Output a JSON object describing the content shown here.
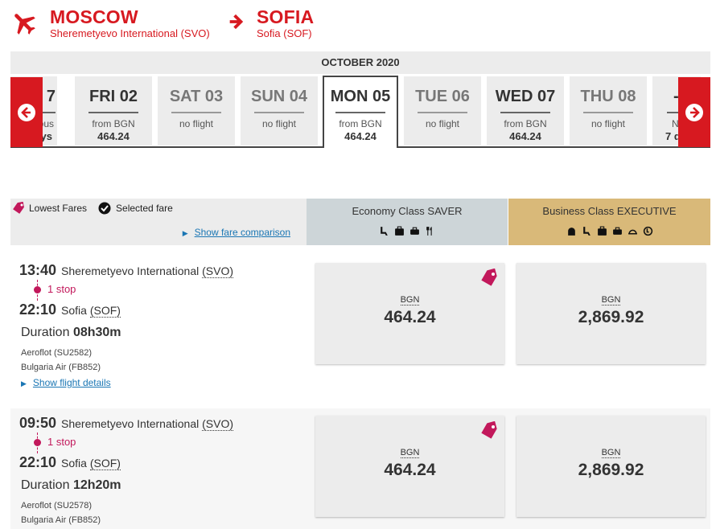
{
  "route": {
    "origin_city": "MOSCOW",
    "origin_airport": "Sheremetyevo International (SVO)",
    "dest_city": "SOFIA",
    "dest_airport": "Sofia (SOF)"
  },
  "calendar": {
    "month": "OCTOBER 2020",
    "partial_left": {
      "label": "7",
      "sub": "ous",
      "price": "ys"
    },
    "days": [
      {
        "label": "FRI 02",
        "sub": "from BGN",
        "price": "464.24"
      },
      {
        "label": "SAT 03",
        "sub": "no flight",
        "price": ""
      },
      {
        "label": "SUN 04",
        "sub": "no flight",
        "price": ""
      },
      {
        "label": "MON 05",
        "sub": "from BGN",
        "price": "464.24"
      },
      {
        "label": "TUE 06",
        "sub": "no flight",
        "price": ""
      },
      {
        "label": "WED 07",
        "sub": "from BGN",
        "price": "464.24"
      },
      {
        "label": "THU 08",
        "sub": "no flight",
        "price": ""
      }
    ],
    "partial_right": {
      "label": "-",
      "sub": "N",
      "price": "7 d"
    },
    "selected_index": 3
  },
  "legend": {
    "lowest": "Lowest Fares",
    "selected": "Selected fare",
    "compare": "Show fare comparison"
  },
  "classes": {
    "economy": "Economy Class SAVER",
    "business": "Business Class EXECUTIVE"
  },
  "flights": [
    {
      "dep_time": "13:40",
      "dep_station": "Sheremetyevo International",
      "dep_code": "(SVO)",
      "stops": "1 stop",
      "arr_time": "22:10",
      "arr_station": "Sofia",
      "arr_code": "(SOF)",
      "duration_label": "Duration",
      "duration": "08h30m",
      "carrier1": "Aeroflot (SU2582)",
      "carrier2": "Bulgaria Air (FB852)",
      "details": "Show flight details",
      "eco_currency": "BGN",
      "eco_price": "464.24",
      "biz_currency": "BGN",
      "biz_price": "2,869.92"
    },
    {
      "dep_time": "09:50",
      "dep_station": "Sheremetyevo International",
      "dep_code": "(SVO)",
      "stops": "1 stop",
      "arr_time": "22:10",
      "arr_station": "Sofia",
      "arr_code": "(SOF)",
      "duration_label": "Duration",
      "duration": "12h20m",
      "carrier1": "Aeroflot (SU2578)",
      "carrier2": "Bulgaria Air (FB852)",
      "eco_currency": "BGN",
      "eco_price": "464.24",
      "biz_currency": "BGN",
      "biz_price": "2,869.92"
    }
  ],
  "colors": {
    "brand": "#d71920",
    "stop": "#c2185b",
    "economy": "#cdd5d8",
    "business": "#d9b979",
    "link": "#1a76b4"
  }
}
